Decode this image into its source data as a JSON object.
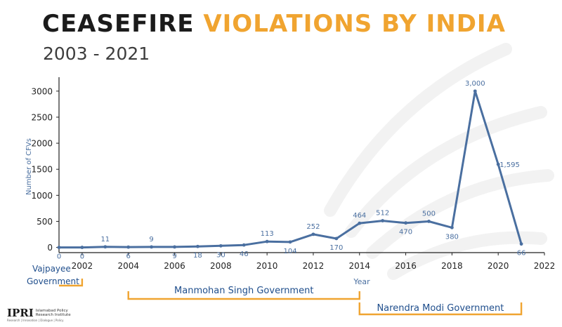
{
  "title": {
    "part1": "CEASEFIRE",
    "part2": "VIOLATIONS BY INDIA"
  },
  "subtitle": "2003 - 2021",
  "colors": {
    "line": "#4a6fa0",
    "accent": "#f0a430",
    "title_dark": "#1b1b1b"
  },
  "logo": {
    "brand": "IPRI",
    "institute_line1": "Islamabad Policy",
    "institute_line2": "Research Institute",
    "tagline": "Research | Innovation | Dialogue | Policy"
  },
  "chart_data": {
    "type": "line",
    "title": "CEASEFIRE VIOLATIONS BY INDIA",
    "subtitle": "2003 - 2021",
    "xlabel": "Year",
    "ylabel": "Number of CFVs",
    "xlim": [
      2001,
      2022
    ],
    "ylim": [
      -100,
      3200
    ],
    "xticks": [
      2002,
      2004,
      2006,
      2008,
      2010,
      2012,
      2014,
      2016,
      2018,
      2020,
      2022
    ],
    "yticks": [
      0,
      500,
      1000,
      1500,
      2000,
      2500,
      3000
    ],
    "grid": false,
    "series": [
      {
        "name": "",
        "x": [
          2001,
          2002,
          2003,
          2004,
          2005,
          2006,
          2007,
          2008,
          2009,
          2010,
          2011,
          2012,
          2013,
          2014,
          2015,
          2016,
          2017,
          2018,
          2019,
          2020,
          2021
        ],
        "y": [
          0,
          0,
          11,
          6,
          9,
          9,
          18,
          30,
          46,
          113,
          104,
          252,
          170,
          464,
          512,
          470,
          500,
          380,
          3000,
          1595,
          66
        ]
      }
    ],
    "data_labels": [
      {
        "x": 2001,
        "text": "0",
        "pos": "below"
      },
      {
        "x": 2002,
        "text": "0",
        "pos": "below"
      },
      {
        "x": 2003,
        "text": "11",
        "pos": "above"
      },
      {
        "x": 2004,
        "text": "6",
        "pos": "below"
      },
      {
        "x": 2005,
        "text": "9",
        "pos": "above"
      },
      {
        "x": 2006,
        "text": "9",
        "pos": "below"
      },
      {
        "x": 2007,
        "text": "18",
        "pos": "below"
      },
      {
        "x": 2008,
        "text": "30",
        "pos": "below"
      },
      {
        "x": 2009,
        "text": "46",
        "pos": "below"
      },
      {
        "x": 2010,
        "text": "113",
        "pos": "above"
      },
      {
        "x": 2011,
        "text": "104",
        "pos": "below"
      },
      {
        "x": 2012,
        "text": "252",
        "pos": "above"
      },
      {
        "x": 2013,
        "text": "170",
        "pos": "below"
      },
      {
        "x": 2014,
        "text": "464",
        "pos": "above"
      },
      {
        "x": 2015,
        "text": "512",
        "pos": "above"
      },
      {
        "x": 2016,
        "text": "470",
        "pos": "below"
      },
      {
        "x": 2017,
        "text": "500",
        "pos": "above"
      },
      {
        "x": 2018,
        "text": "380",
        "pos": "below"
      },
      {
        "x": 2019,
        "text": "3,000",
        "pos": "above"
      },
      {
        "x": 2020,
        "text": "1,595",
        "pos": "right"
      },
      {
        "x": 2021,
        "text": "66",
        "pos": "below"
      }
    ],
    "periods": [
      {
        "label": "Vajpayee Government",
        "lines": [
          "Vajpayee",
          "Government"
        ],
        "start": 2001,
        "end": 2002
      },
      {
        "label": "Manmohan Singh Government",
        "lines": [
          "Manmohan Singh Government"
        ],
        "start": 2004,
        "end": 2014
      },
      {
        "label": "Narendra Modi Government",
        "lines": [
          "Narendra Modi Government"
        ],
        "start": 2014,
        "end": 2021
      }
    ]
  }
}
